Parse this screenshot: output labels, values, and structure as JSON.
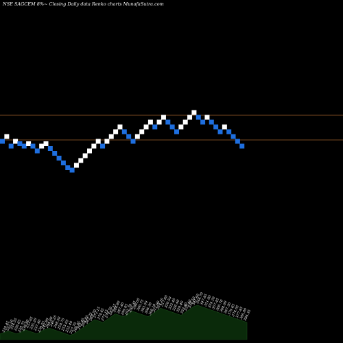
{
  "chart_data": {
    "type": "renko",
    "title": "NSE SAGCEM 8%~ Closing Daily data Renko charts MunafaSutra.com",
    "colors": {
      "background": "#000000",
      "up_brick": "#ffffff",
      "down_brick": "#1e6fe0",
      "reference_line": "#a0622a",
      "volume_area": "#0a2a0a"
    },
    "reference_levels": [
      2.74,
      3.12
    ],
    "y_range": [
      0,
      6
    ],
    "bricks": [
      {
        "dir": "down",
        "level": 3.0
      },
      {
        "dir": "up",
        "level": 3.06
      },
      {
        "dir": "down",
        "level": 2.94
      },
      {
        "dir": "up",
        "level": 3.0
      },
      {
        "dir": "down",
        "level": 2.97
      },
      {
        "dir": "down",
        "level": 2.94
      },
      {
        "dir": "up",
        "level": 2.97
      },
      {
        "dir": "down",
        "level": 2.94
      },
      {
        "dir": "down",
        "level": 2.88
      },
      {
        "dir": "up",
        "level": 2.94
      },
      {
        "dir": "up",
        "level": 2.97
      },
      {
        "dir": "down",
        "level": 2.91
      },
      {
        "dir": "down",
        "level": 2.85
      },
      {
        "dir": "down",
        "level": 2.79
      },
      {
        "dir": "down",
        "level": 2.73
      },
      {
        "dir": "down",
        "level": 2.67
      },
      {
        "dir": "down",
        "level": 2.64
      },
      {
        "dir": "up",
        "level": 2.7
      },
      {
        "dir": "up",
        "level": 2.76
      },
      {
        "dir": "up",
        "level": 2.82
      },
      {
        "dir": "up",
        "level": 2.88
      },
      {
        "dir": "up",
        "level": 2.94
      },
      {
        "dir": "up",
        "level": 3.0
      },
      {
        "dir": "down",
        "level": 2.94
      },
      {
        "dir": "up",
        "level": 3.0
      },
      {
        "dir": "up",
        "level": 3.06
      },
      {
        "dir": "up",
        "level": 3.12
      },
      {
        "dir": "up",
        "level": 3.18
      },
      {
        "dir": "down",
        "level": 3.12
      },
      {
        "dir": "down",
        "level": 3.06
      },
      {
        "dir": "down",
        "level": 3.0
      },
      {
        "dir": "up",
        "level": 3.06
      },
      {
        "dir": "up",
        "level": 3.12
      },
      {
        "dir": "up",
        "level": 3.18
      },
      {
        "dir": "up",
        "level": 3.24
      },
      {
        "dir": "down",
        "level": 3.18
      },
      {
        "dir": "up",
        "level": 3.24
      },
      {
        "dir": "up",
        "level": 3.3
      },
      {
        "dir": "down",
        "level": 3.24
      },
      {
        "dir": "down",
        "level": 3.18
      },
      {
        "dir": "down",
        "level": 3.12
      },
      {
        "dir": "up",
        "level": 3.18
      },
      {
        "dir": "up",
        "level": 3.24
      },
      {
        "dir": "up",
        "level": 3.3
      },
      {
        "dir": "up",
        "level": 3.36
      },
      {
        "dir": "down",
        "level": 3.3
      },
      {
        "dir": "down",
        "level": 3.24
      },
      {
        "dir": "up",
        "level": 3.3
      },
      {
        "dir": "down",
        "level": 3.24
      },
      {
        "dir": "down",
        "level": 3.18
      },
      {
        "dir": "down",
        "level": 3.12
      },
      {
        "dir": "up",
        "level": 3.18
      },
      {
        "dir": "down",
        "level": 3.12
      },
      {
        "dir": "down",
        "level": 3.06
      },
      {
        "dir": "down",
        "level": 3.0
      },
      {
        "dir": "down",
        "level": 2.94
      }
    ],
    "tick_labels": [
      "220.45",
      "222.50",
      "224.55",
      "226.65",
      "228.75",
      "230.90",
      "233.05",
      "235.20",
      "237.40",
      "239.55",
      "241.80",
      "244.00",
      "246.25",
      "248.50",
      "250.75",
      "253.05",
      "255.40",
      "257.70",
      "260.05",
      "262.45",
      "264.85",
      "267.25",
      "269.70",
      "272.15",
      "274.65",
      "277.15",
      "279.70",
      "282.25",
      "284.80",
      "287.40",
      "290.05",
      "292.70",
      "295.35",
      "298.05",
      "300.75",
      "303.50",
      "306.30",
      "309.10",
      "311.90",
      "314.75",
      "317.60",
      "320.50",
      "323.45",
      "326.40",
      "329.40",
      "332.40",
      "335.40",
      "338.50",
      "341.60",
      "344.70",
      "347.85",
      "351.00",
      "354.20",
      "357.45",
      "360.70",
      "364.00",
      "367.30",
      "370.65",
      "374.05",
      "377.45",
      "380.90",
      "384.35"
    ],
    "volume": [
      4,
      5,
      6,
      5,
      4,
      5,
      7,
      6,
      5,
      4,
      6,
      7,
      8,
      7,
      6,
      5,
      4,
      3,
      4,
      6,
      8,
      10,
      12,
      14,
      13,
      12,
      14,
      16,
      18,
      17,
      16,
      18,
      20,
      19,
      18,
      17,
      16,
      18,
      20,
      22,
      21,
      20,
      19,
      18,
      17,
      19,
      21,
      23,
      24,
      23,
      22,
      21,
      20,
      19,
      18,
      17,
      16,
      15,
      14,
      13,
      12
    ]
  }
}
